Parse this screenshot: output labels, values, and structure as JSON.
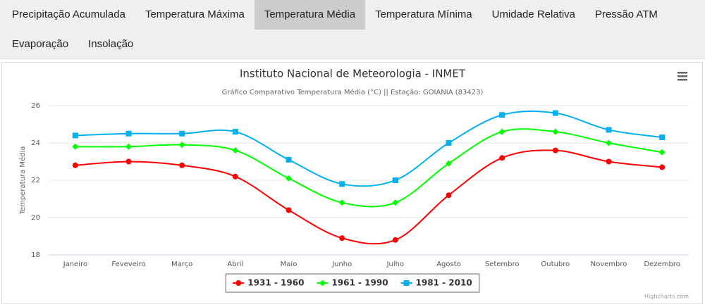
{
  "tabs": [
    [
      {
        "label": "Precipitação Acumulada"
      },
      {
        "label": "Temperatura Máxima"
      },
      {
        "label": "Temperatura Média",
        "active": true
      },
      {
        "label": "Temperatura Mínima"
      },
      {
        "label": "Umidade Relativa"
      },
      {
        "label": "Pressão ATM"
      }
    ],
    [
      {
        "label": "Evaporação"
      },
      {
        "label": "Insolação"
      }
    ]
  ],
  "chart_data": {
    "type": "line",
    "title": "Instituto Nacional de Meteorologia - INMET",
    "subtitle": "Gráfico Comparativo Temperatura Média (°C) || Estação: GOIANIA (83423)",
    "y_label": "Temperatura Média",
    "credits": "Highcharts.com",
    "categories": [
      "Janeiro",
      "Feveveiro",
      "Março",
      "Abril",
      "Maio",
      "Junho",
      "Julho",
      "Agosto",
      "Setembro",
      "Outubro",
      "Novembro",
      "Dezembro"
    ],
    "series": [
      {
        "name": "1931 - 1960",
        "color": "#ff0000",
        "marker": "circle",
        "values": [
          22.8,
          23.0,
          22.8,
          22.2,
          20.4,
          18.9,
          18.8,
          21.2,
          23.2,
          23.6,
          23.0,
          22.7
        ]
      },
      {
        "name": "1961 - 1990",
        "color": "#00ff00",
        "marker": "diamond",
        "values": [
          23.8,
          23.8,
          23.9,
          23.6,
          22.1,
          20.8,
          20.8,
          22.9,
          24.6,
          24.6,
          24.0,
          23.5
        ]
      },
      {
        "name": "1981 - 2010",
        "color": "#00b0f0",
        "marker": "square",
        "values": [
          24.4,
          24.5,
          24.5,
          24.6,
          23.1,
          21.8,
          22.0,
          24.0,
          25.5,
          25.6,
          24.7,
          24.3
        ]
      }
    ],
    "ylim": [
      18,
      26
    ],
    "yticks": [
      18,
      20,
      22,
      24,
      26
    ],
    "grid": true,
    "legend": "bottom"
  }
}
